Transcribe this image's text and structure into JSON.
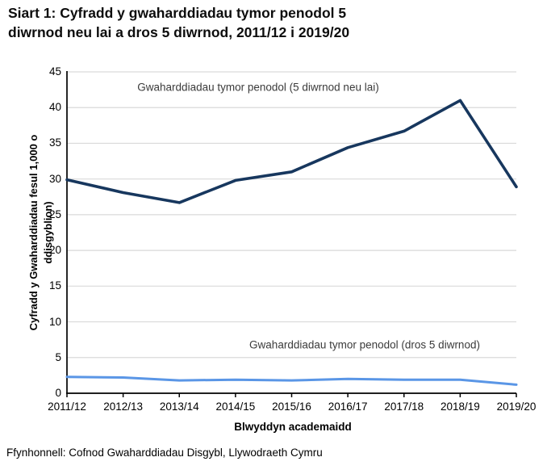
{
  "page": {
    "title": "Siart 1: Cyfradd y gwaharddiadau tymor penodol 5 diwrnod neu lai a dros 5 diwrnod, 2011/12 i 2019/20",
    "title_lines": [
      "Siart 1: Cyfradd y gwaharddiadau tymor penodol 5",
      "diwrnod neu lai a dros 5 diwrnod, 2011/12 i 2019/20"
    ],
    "source": "Ffynhonnell: Cofnod Gwaharddiadau Disgybl, Llywodraeth Cymru"
  },
  "colors": {
    "grid": "#d9d9d9",
    "axis": "#000000",
    "series_dark": "#17375e",
    "series_light": "#5a96e6",
    "annotation_text": "#3b3b3b"
  },
  "chart_data": {
    "type": "line",
    "title": "Siart 1: Cyfradd y gwaharddiadau tymor penodol 5 diwrnod neu lai a dros 5 diwrnod, 2011/12 i 2019/20",
    "categories": [
      "2011/12",
      "2012/13",
      "2013/14",
      "2014/15",
      "2015/16",
      "2016/17",
      "2017/18",
      "2018/19",
      "2019/20"
    ],
    "series": [
      {
        "name": "Gwaharddiadau tymor penodol (5 diwrnod neu lai)",
        "color": "#17375e",
        "values": [
          29.9,
          28.1,
          26.7,
          29.8,
          31.0,
          34.4,
          36.7,
          41.0,
          28.9
        ]
      },
      {
        "name": "Gwaharddiadau tymor penodol (dros 5 diwrnod)",
        "color": "#5a96e6",
        "values": [
          2.3,
          2.2,
          1.8,
          1.9,
          1.8,
          2.0,
          1.9,
          1.9,
          1.2
        ]
      }
    ],
    "xlabel": "Blwyddyn academaidd",
    "ylabel": "Cyfradd y Gwaharddiadau fesul 1,000 o ddisgyblion)",
    "ylabel_lines": [
      "Cyfradd y Gwaharddiadau fesul 1,000 o",
      "ddisgyblion)"
    ],
    "ylim": [
      0,
      45
    ],
    "yticks": [
      0,
      5,
      10,
      15,
      20,
      25,
      30,
      35,
      40,
      45
    ],
    "grid": "horizontal-only",
    "legend": "inline-annotations-above-and-below-lines"
  }
}
